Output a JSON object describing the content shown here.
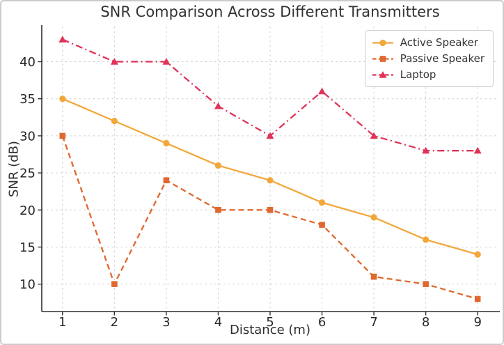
{
  "window": {
    "background": "#ffffff",
    "frame_border_color": "#cbcbcb"
  },
  "chart_data": {
    "type": "line",
    "title": "SNR Comparison Across Different Transmitters",
    "xlabel": "Distance (m)",
    "ylabel": "SNR (dB)",
    "x": [
      1,
      2,
      3,
      4,
      5,
      6,
      7,
      8,
      9
    ],
    "xticks": [
      1,
      2,
      3,
      4,
      5,
      6,
      7,
      8,
      9
    ],
    "yticks": [
      10,
      15,
      20,
      25,
      30,
      35,
      40
    ],
    "xlim": [
      0.6,
      9.4
    ],
    "ylim": [
      6.3,
      44.75
    ],
    "grid": true,
    "grid_style": "dashed",
    "legend_position": "upper right",
    "series": [
      {
        "name": "Active Speaker",
        "values": [
          35,
          32,
          29,
          26,
          24,
          21,
          19,
          16,
          14
        ],
        "color": "#F2A73B",
        "marker": "circle",
        "line_style": "solid"
      },
      {
        "name": "Passive Speaker",
        "values": [
          30,
          10,
          24,
          20,
          20,
          18,
          11,
          10,
          8
        ],
        "color": "#E0682E",
        "marker": "square",
        "line_style": "dashed"
      },
      {
        "name": "Laptop",
        "values": [
          43,
          40,
          40,
          34,
          30,
          36,
          30,
          28,
          28
        ],
        "color": "#E03358",
        "marker": "triangle",
        "line_style": "dashdot"
      }
    ]
  },
  "styles": {
    "grid_color": "#cccccc",
    "axis_color": "#2f2f2f",
    "tick_text_color": "#262626",
    "title_color": "#333333",
    "legend_border": "#cccccc",
    "legend_bg": "#ffffff"
  }
}
